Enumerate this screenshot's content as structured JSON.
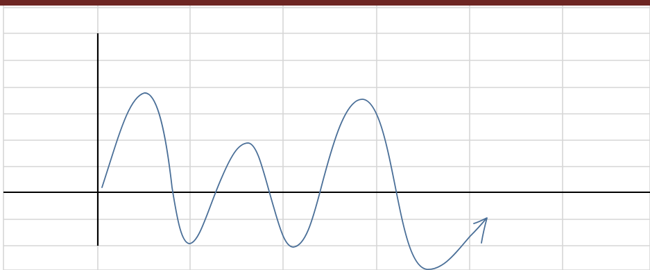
{
  "colors": {
    "top_bar": "#6e2623",
    "grid_line": "#d6d6d6",
    "axis": "#000000",
    "curve": "#4a6f98",
    "background": "#ffffff"
  },
  "spreadsheet_grid": {
    "columns": 7,
    "rows": 10
  }
}
